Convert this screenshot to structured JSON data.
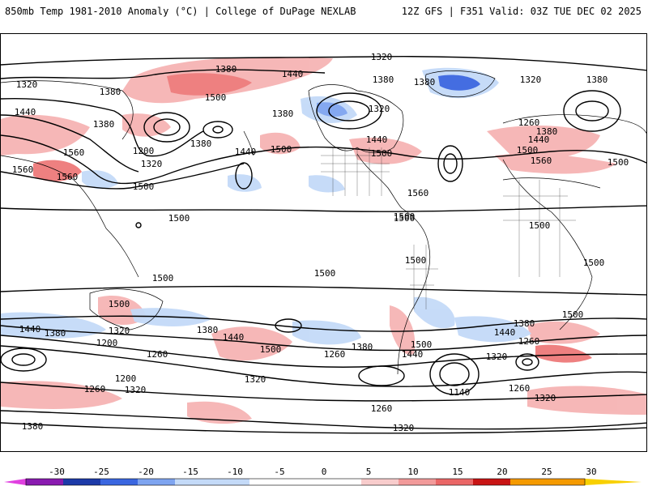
{
  "header": {
    "left_title": "850mb Temp 1981-2010 Anomaly (°C) | College of DuPage NEXLAB",
    "right_title": "12Z GFS | F351 Valid: 03Z TUE DEC 02 2025"
  },
  "map": {
    "projection": "global-cylindrical",
    "contour_variable": "850mb geopotential height",
    "contour_labels": [
      {
        "id": "c1",
        "text": "1320"
      },
      {
        "id": "c2",
        "text": "1380"
      },
      {
        "id": "c3",
        "text": "1440"
      },
      {
        "id": "c4",
        "text": "1380"
      },
      {
        "id": "c5",
        "text": "1500"
      },
      {
        "id": "c6",
        "text": "1320"
      },
      {
        "id": "c7",
        "text": "1440"
      },
      {
        "id": "c8",
        "text": "1380"
      },
      {
        "id": "c9",
        "text": "1560"
      },
      {
        "id": "c10",
        "text": "1560"
      },
      {
        "id": "c11",
        "text": "1560"
      },
      {
        "id": "c12",
        "text": "1200"
      },
      {
        "id": "c13",
        "text": "1320"
      },
      {
        "id": "c14",
        "text": "1380"
      },
      {
        "id": "c15",
        "text": "1500"
      },
      {
        "id": "c16",
        "text": "1380"
      },
      {
        "id": "c17",
        "text": "1440"
      },
      {
        "id": "c18",
        "text": "1500"
      },
      {
        "id": "c19",
        "text": "1380"
      },
      {
        "id": "c20",
        "text": "1380"
      },
      {
        "id": "c21",
        "text": "1320"
      },
      {
        "id": "c22",
        "text": "1440"
      },
      {
        "id": "c23",
        "text": "1500"
      },
      {
        "id": "c24",
        "text": "1560"
      },
      {
        "id": "c25",
        "text": "1500"
      },
      {
        "id": "c26",
        "text": "1380"
      },
      {
        "id": "c27",
        "text": "1320"
      },
      {
        "id": "c28",
        "text": "1260"
      },
      {
        "id": "c29",
        "text": "1380"
      },
      {
        "id": "c30",
        "text": "1440"
      },
      {
        "id": "c31",
        "text": "1500"
      },
      {
        "id": "c32",
        "text": "1560"
      },
      {
        "id": "c33",
        "text": "1500"
      },
      {
        "id": "c34",
        "text": "1500"
      },
      {
        "id": "c35",
        "text": "1500"
      },
      {
        "id": "c36",
        "text": "1500"
      },
      {
        "id": "c37",
        "text": "1500"
      },
      {
        "id": "c38",
        "text": "1500"
      },
      {
        "id": "c39",
        "text": "1500"
      },
      {
        "id": "c40",
        "text": "1500"
      },
      {
        "id": "c41",
        "text": "1440"
      },
      {
        "id": "c42",
        "text": "1380"
      },
      {
        "id": "c43",
        "text": "1320"
      },
      {
        "id": "c44",
        "text": "1200"
      },
      {
        "id": "c45",
        "text": "1260"
      },
      {
        "id": "c46",
        "text": "1380"
      },
      {
        "id": "c47",
        "text": "1440"
      },
      {
        "id": "c48",
        "text": "1500"
      },
      {
        "id": "c49",
        "text": "1260"
      },
      {
        "id": "c50",
        "text": "1380"
      },
      {
        "id": "c51",
        "text": "1500"
      },
      {
        "id": "c52",
        "text": "1440"
      },
      {
        "id": "c53",
        "text": "1500"
      },
      {
        "id": "c54",
        "text": "1440"
      },
      {
        "id": "c55",
        "text": "1380"
      },
      {
        "id": "c56",
        "text": "1260"
      },
      {
        "id": "c57",
        "text": "1320"
      },
      {
        "id": "c58",
        "text": "1500"
      },
      {
        "id": "c59",
        "text": "1320"
      },
      {
        "id": "c60",
        "text": "1200"
      },
      {
        "id": "c61",
        "text": "1260"
      },
      {
        "id": "c62",
        "text": "1320"
      },
      {
        "id": "c63",
        "text": "1140"
      },
      {
        "id": "c64",
        "text": "1260"
      },
      {
        "id": "c65",
        "text": "1320"
      },
      {
        "id": "c66",
        "text": "1260"
      },
      {
        "id": "c67",
        "text": "1320"
      },
      {
        "id": "c68",
        "text": "1380"
      }
    ]
  },
  "colorbar": {
    "ticks": [
      "-30",
      "-25",
      "-20",
      "-15",
      "-10",
      "-5",
      "0",
      "5",
      "10",
      "15",
      "20",
      "25",
      "30"
    ],
    "colors": {
      "neg_30": "#e040e0",
      "neg_25": "#8a1ab0",
      "neg_20": "#1c3aa8",
      "neg_15": "#3a66e0",
      "neg_10": "#7ea4f0",
      "neg_5": "#c4daf8",
      "neutral": "#ffffff",
      "pos_5": "#f8cccc",
      "pos_10": "#f29a9a",
      "pos_15": "#ea6666",
      "pos_20": "#c81414",
      "pos_25": "#f59a00",
      "pos_30": "#f8d000"
    }
  }
}
